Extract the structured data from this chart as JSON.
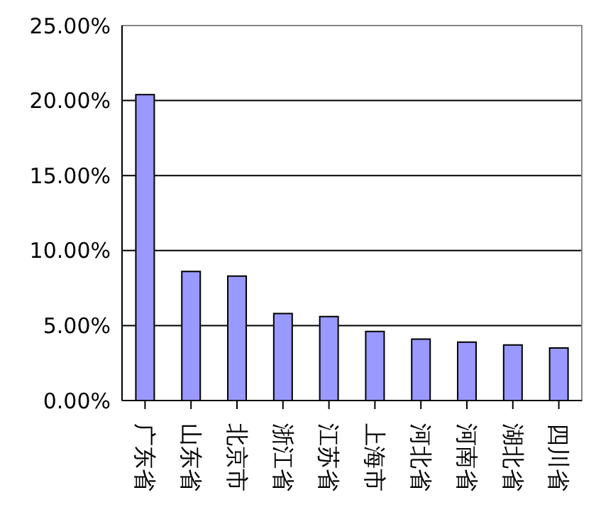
{
  "chart_data": {
    "type": "bar",
    "categories": [
      "广东省",
      "山东省",
      "北京市",
      "浙江省",
      "江苏省",
      "上海市",
      "河北省",
      "河南省",
      "湖北省",
      "四川省"
    ],
    "values": [
      20.4,
      8.6,
      8.3,
      5.8,
      5.6,
      4.6,
      4.1,
      3.9,
      3.7,
      3.5
    ],
    "color": "#9999ff",
    "ylim": [
      0,
      25
    ],
    "yticks": [
      {
        "value": 0,
        "label": "0.00%"
      },
      {
        "value": 5,
        "label": "5.00%"
      },
      {
        "value": 10,
        "label": "10.00%"
      },
      {
        "value": 15,
        "label": "15.00%"
      },
      {
        "value": 20,
        "label": "20.00%"
      },
      {
        "value": 25,
        "label": "25.00%"
      }
    ],
    "grid": "y",
    "legend": false
  }
}
